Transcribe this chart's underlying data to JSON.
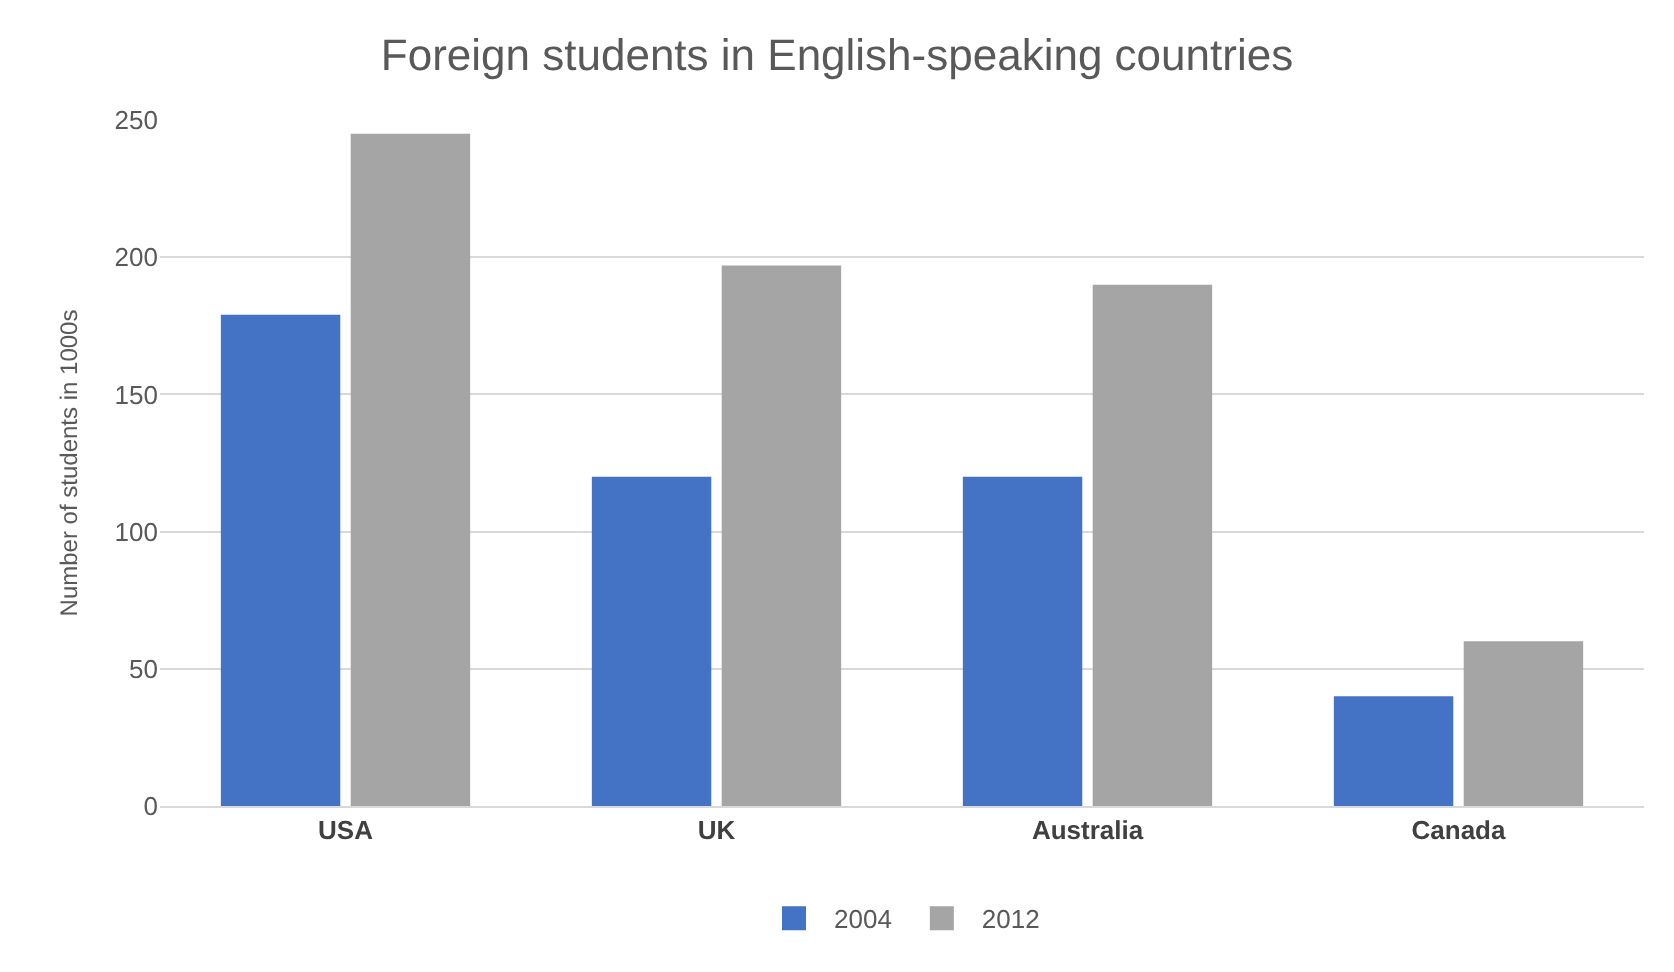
{
  "chart_data": {
    "type": "bar",
    "title": "Foreign students in English-speaking countries",
    "ylabel": "Number of students in 1000s",
    "categories": [
      "USA",
      "UK",
      "Australia",
      "Canada"
    ],
    "series": [
      {
        "name": "2004",
        "color": "#4472c4",
        "values": [
          179,
          120,
          120,
          40
        ]
      },
      {
        "name": "2012",
        "color": "#a5a5a5",
        "values": [
          245,
          197,
          190,
          60
        ]
      }
    ],
    "ylim": [
      0,
      250
    ],
    "yticks": [
      0,
      50,
      100,
      150,
      200,
      250
    ],
    "grid": "y",
    "legend": "bottom"
  }
}
